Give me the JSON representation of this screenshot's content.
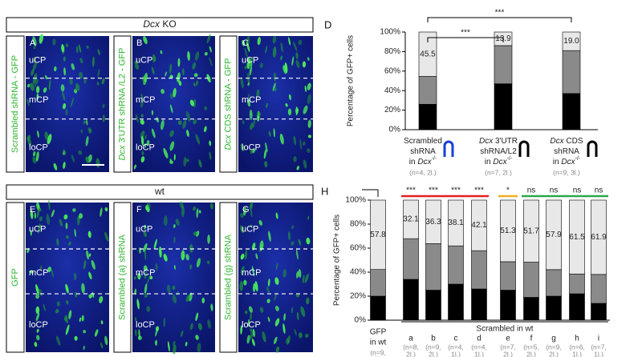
{
  "top": {
    "header": [
      {
        "text": "Dcx",
        "style": "italic"
      },
      {
        "text": " KO"
      }
    ],
    "panels": [
      {
        "letter": "A",
        "label": [
          {
            "text": "Scrambled shRNA - GFP"
          }
        ],
        "regions": [
          "uCP",
          "mCP",
          "loCP"
        ]
      },
      {
        "letter": "B",
        "label": [
          {
            "text": "Dcx",
            "style": "italic"
          },
          {
            "text": " 3'UTR shRNA /L2 - GFP"
          }
        ],
        "regions": [
          "uCP",
          "mCP",
          "loCP"
        ]
      },
      {
        "letter": "C",
        "label": [
          {
            "text": "Dcx",
            "style": "italic"
          },
          {
            "text": " CDS shRNA - GFP"
          }
        ],
        "regions": [
          "uCP",
          "mCP",
          "loCP"
        ]
      }
    ]
  },
  "bottom": {
    "header": [
      {
        "text": "wt"
      }
    ],
    "panels": [
      {
        "letter": "E",
        "label": [
          {
            "text": "GFP"
          }
        ],
        "regions": [
          "uCP",
          "mCP",
          "loCP"
        ]
      },
      {
        "letter": "F",
        "label": [
          {
            "text": "Scrambled (a) shRNA"
          }
        ],
        "regions": [
          "uCP",
          "mCP",
          "loCP"
        ]
      },
      {
        "letter": "G",
        "label": [
          {
            "text": "Scrambled (g) shRNA"
          }
        ],
        "regions": [
          "uCP",
          "mCP",
          "loCP"
        ]
      }
    ]
  },
  "chart_data": [
    {
      "type": "bar",
      "stacked": true,
      "panel_letter": "D",
      "y_label": "Percentage of GFP+ cells",
      "ylim": [
        0,
        100
      ],
      "yticks": [
        {
          "value": 0,
          "label": "0%"
        },
        {
          "value": 20,
          "label": "20%"
        },
        {
          "value": 40,
          "label": "40%"
        },
        {
          "value": 60,
          "label": "60%"
        },
        {
          "value": 80,
          "label": "80%"
        },
        {
          "value": 100,
          "label": "100%"
        }
      ],
      "categories": [
        [
          [
            {
              "text": "Scrambled"
            }
          ],
          [
            {
              "text": "shRNA"
            }
          ],
          [
            {
              "text": "in "
            },
            {
              "text": "Dcx",
              "style": "italic"
            },
            {
              "text": "-/-",
              "style": "sup"
            }
          ]
        ],
        [
          [
            {
              "text": "Dcx",
              "style": "italic"
            },
            {
              "text": " 3'UTR"
            }
          ],
          [
            {
              "text": "shRNA/L2"
            }
          ],
          [
            {
              "text": "in "
            },
            {
              "text": "Dcx",
              "style": "italic"
            },
            {
              "text": "-/-",
              "style": "sup"
            }
          ]
        ],
        [
          [
            {
              "text": "Dcx",
              "style": "italic"
            },
            {
              "text": " CDS"
            }
          ],
          [
            {
              "text": "shRNA"
            }
          ],
          [
            {
              "text": "in "
            },
            {
              "text": "Dcx",
              "style": "italic"
            },
            {
              "text": "-/-",
              "style": "sup"
            }
          ]
        ]
      ],
      "n_labels": [
        [
          "(n=4, 2l.)"
        ],
        [
          "(n=7, 2l.)"
        ],
        [
          "(n=9, 3l.)"
        ]
      ],
      "series": [
        {
          "color": "#000000",
          "values": [
            26,
            47,
            37
          ]
        },
        {
          "color": "#8a8a8a",
          "values": [
            28.5,
            39.1,
            44
          ]
        },
        {
          "color": "#e8e8e8",
          "values": [
            45.5,
            13.9,
            19.0
          ],
          "value_labels": [
            "45.5",
            "13.9",
            "19.0"
          ]
        }
      ],
      "comparisons": [
        {
          "label": "***",
          "categories": [
            0,
            1
          ]
        },
        {
          "label": "***",
          "categories": [
            0,
            2
          ]
        }
      ]
    },
    {
      "type": "bar",
      "stacked": true,
      "panel_letter": "H",
      "y_label": "Percentage of GFP+ cells",
      "ylim": [
        0,
        100
      ],
      "yticks": [
        {
          "value": 0,
          "label": "0%"
        },
        {
          "value": 20,
          "label": "20%"
        },
        {
          "value": 40,
          "label": "40%"
        },
        {
          "value": 60,
          "label": "60%"
        },
        {
          "value": 80,
          "label": "80%"
        },
        {
          "value": 100,
          "label": "100%"
        }
      ],
      "categories": [
        [
          "GFP",
          "in wt"
        ],
        [
          "a"
        ],
        [
          "b"
        ],
        [
          "c"
        ],
        [
          "d"
        ],
        [
          "e"
        ],
        [
          "f"
        ],
        [
          "g"
        ],
        [
          "h"
        ],
        [
          "i"
        ]
      ],
      "group_label": "Scrambled in wt",
      "n_labels": [
        [
          "(n=9,",
          "4l.)"
        ],
        [
          "(n=8,",
          "2l.)"
        ],
        [
          "(n=9,",
          "2l.)"
        ],
        [
          "(n=4,",
          "1l.)"
        ],
        [
          "(n=4,",
          "1l.)"
        ],
        [
          "(n=7,",
          "2l.)"
        ],
        [
          "(n=5,",
          "2l.)"
        ],
        [
          "(n=9,",
          "2l.)"
        ],
        [
          "(n=6,",
          "1l.)"
        ],
        [
          "(n=7,",
          "1l.)"
        ]
      ],
      "significance": [
        null,
        "***",
        "***",
        "***",
        "***",
        "*",
        "ns",
        "ns",
        "ns",
        "ns"
      ],
      "sig_groups": [
        {
          "color": "#e02020",
          "categories": [
            1,
            4
          ]
        },
        {
          "color": "#f0b020",
          "categories": [
            5,
            5
          ]
        },
        {
          "color": "#2aa84a",
          "categories": [
            6,
            9
          ]
        }
      ],
      "series": [
        {
          "color": "#000000",
          "values": [
            20,
            34,
            25,
            30,
            26,
            25,
            19,
            20,
            22,
            14
          ]
        },
        {
          "color": "#8a8a8a",
          "values": [
            22.2,
            33.9,
            38.7,
            31.9,
            31.9,
            23.7,
            29.3,
            22.1,
            16.5,
            24.1
          ]
        },
        {
          "color": "#e8e8e8",
          "values": [
            57.8,
            32.1,
            36.3,
            38.1,
            42.1,
            51.3,
            51.7,
            57.9,
            61.5,
            61.9
          ]
        }
      ]
    }
  ]
}
